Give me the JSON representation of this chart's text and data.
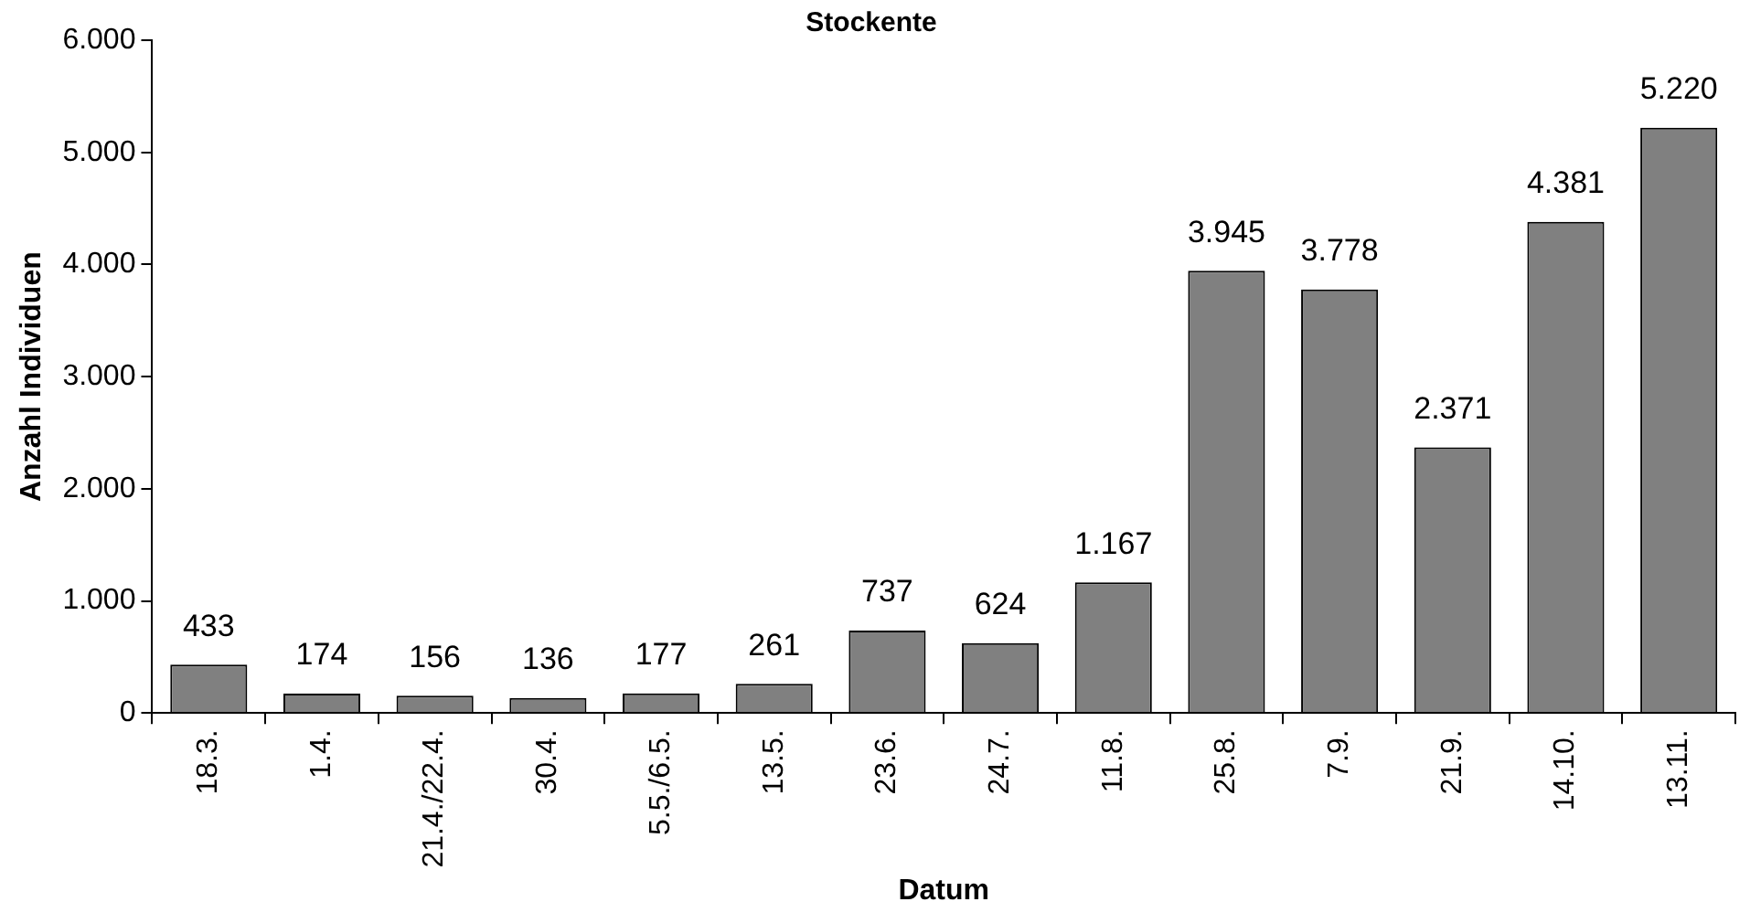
{
  "chart_data": {
    "type": "bar",
    "title": "Stockente",
    "xlabel": "Datum",
    "ylabel": "Anzahl Individuen",
    "categories": [
      "18.3.",
      "1.4.",
      "21.4./22.4.",
      "30.4.",
      "5.5./6.5.",
      "13.5.",
      "23.6.",
      "24.7.",
      "11.8.",
      "25.8.",
      "7.9.",
      "21.9.",
      "14.10.",
      "13.11."
    ],
    "values": [
      433,
      174,
      156,
      136,
      177,
      261,
      737,
      624,
      1167,
      3945,
      3778,
      2371,
      4381,
      5220
    ],
    "value_labels": [
      "433",
      "174",
      "156",
      "136",
      "177",
      "261",
      "737",
      "624",
      "1.167",
      "3.945",
      "3.778",
      "2.371",
      "4.381",
      "5.220"
    ],
    "color": "#808080",
    "ylim": [
      0,
      6000
    ],
    "yticks": [
      {
        "value": 0,
        "label": "0"
      },
      {
        "value": 1000,
        "label": "1.000"
      },
      {
        "value": 2000,
        "label": "2.000"
      },
      {
        "value": 3000,
        "label": "3.000"
      },
      {
        "value": 4000,
        "label": "4.000"
      },
      {
        "value": 5000,
        "label": "5.000"
      },
      {
        "value": 6000,
        "label": "6.000"
      }
    ],
    "grid": false,
    "legend": false
  }
}
